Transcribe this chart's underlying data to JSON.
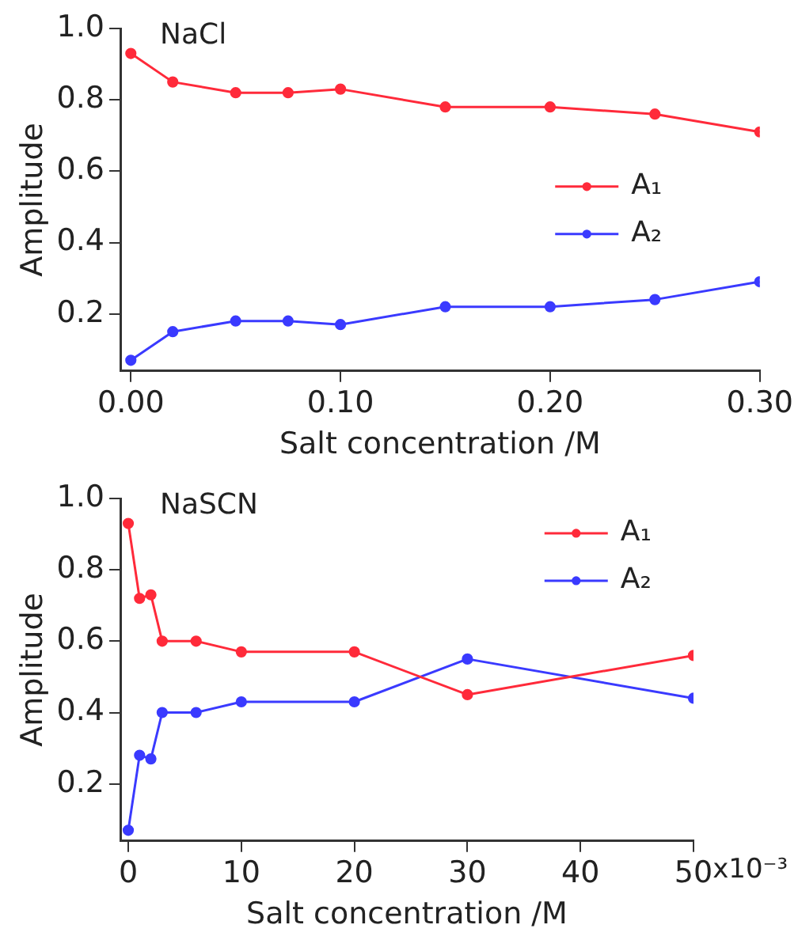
{
  "chart_data": [
    {
      "type": "line",
      "title": "NaCl",
      "xlabel": "Salt concentration /M",
      "ylabel": "Amplitude",
      "x": [
        0,
        0.02,
        0.05,
        0.075,
        0.1,
        0.15,
        0.2,
        0.25,
        0.3
      ],
      "series": [
        {
          "name": "A₁",
          "color": "#ff2a3a",
          "values": [
            0.93,
            0.85,
            0.82,
            0.82,
            0.83,
            0.78,
            0.78,
            0.76,
            0.71
          ]
        },
        {
          "name": "A₂",
          "color": "#3a3aff",
          "values": [
            0.07,
            0.15,
            0.18,
            0.18,
            0.17,
            0.22,
            0.22,
            0.24,
            0.29
          ]
        }
      ],
      "xlim": [
        -0.005,
        0.3
      ],
      "xticks": [
        {
          "value": 0,
          "label": "0.00"
        },
        {
          "value": 0.1,
          "label": "0.10"
        },
        {
          "value": 0.2,
          "label": "0.20"
        },
        {
          "value": 0.3,
          "label": "0.30"
        }
      ],
      "ylim": [
        0.04,
        1.0
      ],
      "yticks": [
        {
          "value": 0.2,
          "label": "0.2"
        },
        {
          "value": 0.4,
          "label": "0.4"
        },
        {
          "value": 0.6,
          "label": "0.6"
        },
        {
          "value": 0.8,
          "label": "0.8"
        },
        {
          "value": 1.0,
          "label": "1.0"
        }
      ],
      "grid": false,
      "legend": "right",
      "marker": "circle",
      "line_style": "solid"
    },
    {
      "type": "line",
      "title": "NaSCN",
      "xlabel": "Salt concentration /M",
      "ylabel": "Amplitude",
      "x": [
        0,
        1,
        2,
        3,
        6,
        10,
        20,
        30,
        50
      ],
      "series": [
        {
          "name": "A₁",
          "color": "#ff2a3a",
          "values": [
            0.93,
            0.72,
            0.73,
            0.6,
            0.6,
            0.57,
            0.57,
            0.45,
            0.56
          ]
        },
        {
          "name": "A₂",
          "color": "#3a3aff",
          "values": [
            0.07,
            0.28,
            0.27,
            0.4,
            0.4,
            0.43,
            0.43,
            0.55,
            0.44
          ]
        }
      ],
      "xlim": [
        -0.7,
        50
      ],
      "xticks": [
        0,
        10,
        20,
        30,
        40,
        50
      ],
      "annotations": [
        "x10⁻³"
      ],
      "ylim": [
        0.04,
        1.0
      ],
      "yticks": [
        {
          "value": 0.2,
          "label": "0.2"
        },
        {
          "value": 0.4,
          "label": "0.4"
        },
        {
          "value": 0.6,
          "label": "0.6"
        },
        {
          "value": 0.8,
          "label": "0.8"
        },
        {
          "value": 1.0,
          "label": "1.0"
        }
      ],
      "grid": false,
      "legend": "top right",
      "marker": "circle",
      "line_style": "solid"
    }
  ]
}
